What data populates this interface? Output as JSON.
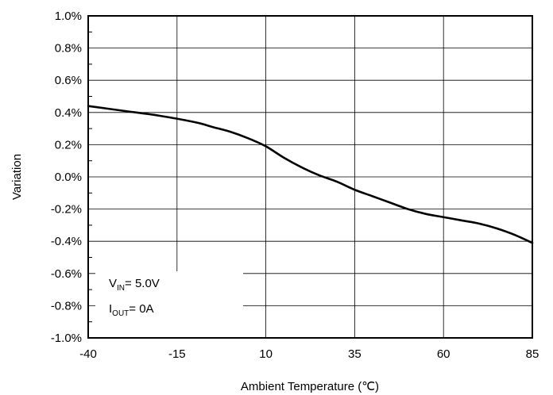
{
  "chart_data": {
    "type": "line",
    "xlabel": "Ambient Temperature (℃)",
    "ylabel": "Variation",
    "xlim": [
      -40,
      85
    ],
    "ylim": [
      -1.0,
      1.0
    ],
    "x_ticks": [
      -40,
      -15,
      10,
      35,
      60,
      85
    ],
    "x_tick_labels": [
      "-40",
      "-15",
      "10",
      "35",
      "60",
      "85"
    ],
    "y_ticks": [
      1.0,
      0.8,
      0.6,
      0.4,
      0.2,
      0.0,
      -0.2,
      -0.4,
      -0.6,
      -0.8,
      -1.0
    ],
    "y_tick_labels": [
      "1.0%",
      "0.8%",
      "0.6%",
      "0.4%",
      "0.2%",
      "0.0%",
      "-0.2%",
      "-0.4%",
      "-0.6%",
      "-0.8%",
      "-1.0%"
    ],
    "grid": true,
    "series": [
      {
        "x": [
          -40,
          -30,
          -20,
          -10,
          -5,
          0,
          5,
          10,
          15,
          20,
          25,
          30,
          35,
          40,
          45,
          50,
          55,
          60,
          65,
          70,
          75,
          80,
          85
        ],
        "y": [
          0.44,
          0.41,
          0.38,
          0.34,
          0.31,
          0.28,
          0.24,
          0.19,
          0.12,
          0.06,
          0.01,
          -0.03,
          -0.08,
          -0.12,
          -0.16,
          -0.2,
          -0.23,
          -0.25,
          -0.27,
          -0.29,
          -0.32,
          -0.36,
          -0.41
        ],
        "color": "#000000"
      }
    ],
    "annotation": {
      "vin": {
        "main": "V",
        "sub": "IN",
        "rest": "= 5.0V"
      },
      "iout": {
        "main": "I",
        "sub": "OUT",
        "rest": "= 0A"
      }
    }
  }
}
